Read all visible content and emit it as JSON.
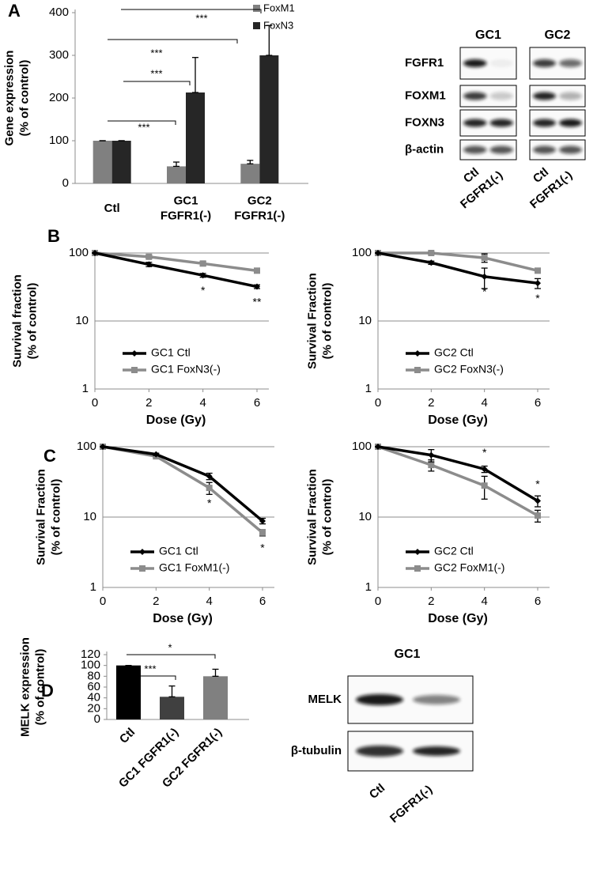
{
  "panel_labels": [
    "A",
    "B",
    "C",
    "D"
  ],
  "chart_data": [
    {
      "type": "bar",
      "y_label": "Gene expression\n(% of control)",
      "categories": [
        "Ctl",
        "GC1\nFGFR1(-)",
        "GC2\nFGFR1(-)"
      ],
      "series": [
        {
          "name": "FoxM1",
          "color": "#808080",
          "values": [
            100,
            40,
            46
          ],
          "errors": [
            0,
            10,
            8
          ]
        },
        {
          "name": "FoxN3",
          "color": "#262626",
          "values": [
            100,
            213,
            300
          ],
          "errors": [
            0,
            82,
            70
          ]
        }
      ],
      "ylim": [
        0,
        400
      ],
      "yticks": [
        0,
        100,
        200,
        300,
        400
      ],
      "legend": "upper-right",
      "significance": [
        "***",
        "***",
        "***",
        "***"
      ]
    },
    {
      "type": "line",
      "log_y": true,
      "x": [
        0,
        2,
        4,
        6
      ],
      "xlim": [
        0,
        6
      ],
      "xticks": [
        0,
        2,
        4,
        6
      ],
      "ylim": [
        1,
        100
      ],
      "yticks": [
        1,
        10,
        100
      ],
      "grid": true,
      "legend": "lower-left",
      "x_label": "Dose (Gy)",
      "y_label": "Survival fraction\n(% of control)",
      "series": [
        {
          "name": "GC1 Ctl",
          "color": "#000000",
          "values": [
            100,
            68,
            47,
            32
          ],
          "errors": [
            0,
            5,
            3,
            2
          ]
        },
        {
          "name": "GC1 FoxN3(-)",
          "color": "#8c8c8c",
          "values": [
            100,
            88,
            70,
            55
          ],
          "errors": [
            0,
            4,
            5,
            3
          ]
        }
      ],
      "annotations": [
        {
          "text": "*",
          "x": 4
        },
        {
          "text": "**",
          "x": 6
        }
      ]
    },
    {
      "type": "line",
      "log_y": true,
      "x": [
        0,
        2,
        4,
        6
      ],
      "xlim": [
        0,
        6
      ],
      "xticks": [
        0,
        2,
        4,
        6
      ],
      "ylim": [
        1,
        100
      ],
      "yticks": [
        1,
        10,
        100
      ],
      "grid": true,
      "legend": "lower-left",
      "x_label": "Dose (Gy)",
      "y_label": "Survival Fraction\n(% of control)",
      "series": [
        {
          "name": "GC2 Ctl",
          "color": "#000000",
          "values": [
            100,
            72,
            45,
            36
          ],
          "errors": [
            0,
            4,
            15,
            6
          ]
        },
        {
          "name": "GC2 FoxN3(-)",
          "color": "#8c8c8c",
          "values": [
            100,
            100,
            85,
            55
          ],
          "errors": [
            0,
            3,
            12,
            4
          ]
        }
      ],
      "annotations": [
        {
          "text": "*",
          "x": 4
        },
        {
          "text": "*",
          "x": 6
        }
      ]
    },
    {
      "type": "line",
      "log_y": true,
      "x": [
        0,
        2,
        4,
        6
      ],
      "xlim": [
        0,
        6
      ],
      "xticks": [
        0,
        2,
        4,
        6
      ],
      "ylim": [
        1,
        100
      ],
      "yticks": [
        1,
        10,
        100
      ],
      "grid": true,
      "legend": "lower-left",
      "x_label": "Dose (Gy)",
      "y_label": "Survival Fraction\n(% of control)",
      "series": [
        {
          "name": "GC1 Ctl",
          "color": "#000000",
          "values": [
            100,
            78,
            38,
            8.8
          ],
          "errors": [
            0,
            3,
            4,
            0.8
          ]
        },
        {
          "name": "GC1 FoxM1(-)",
          "color": "#8c8c8c",
          "values": [
            100,
            73,
            26,
            6
          ],
          "errors": [
            0,
            3,
            5,
            0.6
          ]
        }
      ],
      "annotations": [
        {
          "text": "*",
          "x": 4
        },
        {
          "text": "*",
          "x": 6
        }
      ]
    },
    {
      "type": "line",
      "log_y": true,
      "x": [
        0,
        2,
        4,
        6
      ],
      "xlim": [
        0,
        6
      ],
      "xticks": [
        0,
        2,
        4,
        6
      ],
      "ylim": [
        1,
        100
      ],
      "yticks": [
        1,
        10,
        100
      ],
      "grid": true,
      "legend": "lower-left",
      "x_label": "Dose (Gy)",
      "y_label": "Survival Fraction\n(% of control)",
      "series": [
        {
          "name": "GC2 Ctl",
          "color": "#000000",
          "values": [
            100,
            76,
            48,
            17
          ],
          "errors": [
            0,
            15,
            5,
            3
          ]
        },
        {
          "name": "GC2 FoxM1(-)",
          "color": "#8c8c8c",
          "values": [
            100,
            55,
            28,
            10.5
          ],
          "errors": [
            0,
            10,
            10,
            2
          ]
        }
      ],
      "annotations": [
        {
          "text": "*",
          "x": 4
        },
        {
          "text": "*",
          "x": 6
        }
      ]
    },
    {
      "type": "bar",
      "y_label": "MELK expression\n(% of control)",
      "categories": [
        "Ctl",
        "GC1 FGFR1(-)",
        "GC2 FGFR1(-)"
      ],
      "series": [
        {
          "colors": [
            "#000000",
            "#404040",
            "#808080"
          ],
          "values": [
            100,
            42,
            80
          ],
          "errors": [
            0,
            20,
            13
          ]
        }
      ],
      "ylim": [
        0,
        120
      ],
      "yticks": [
        0,
        20,
        40,
        60,
        80,
        100,
        120
      ],
      "significance": [
        "***",
        "*"
      ]
    }
  ],
  "blots": [
    {
      "columns": [
        "GC1",
        "GC2"
      ],
      "rows": [
        "FGFR1",
        "FOXM1",
        "FOXN3",
        "β-actin"
      ],
      "lanes": [
        "Ctl",
        "FGFR1(-)"
      ]
    },
    {
      "columns": [
        "GC1"
      ],
      "rows": [
        "MELK",
        "β-tubulin"
      ],
      "lanes": [
        "Ctl",
        "FGFR1(-)"
      ]
    }
  ]
}
